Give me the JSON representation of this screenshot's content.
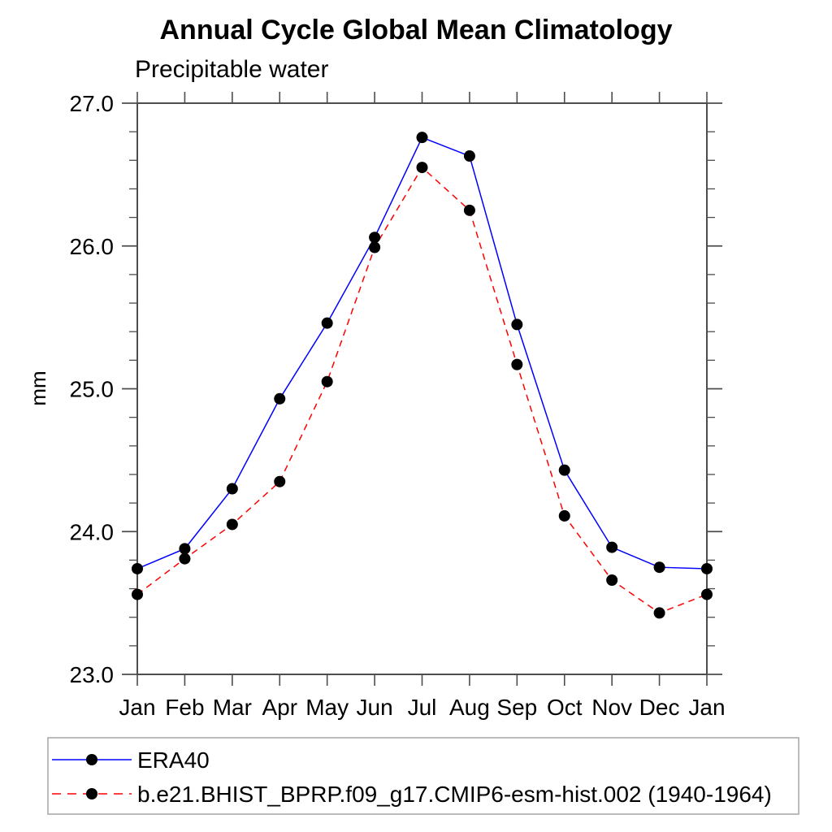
{
  "page": {
    "background": "#ffffff"
  },
  "colors": {
    "axis": "#4d4d4d",
    "text": "#000000",
    "legend_border": "#a6a6a6",
    "background": "#ffffff"
  },
  "chart_data": {
    "type": "line",
    "title": "Annual Cycle Global Mean Climatology",
    "subtitle": "Precipitable water",
    "ylabel": "mm",
    "xlabel": "",
    "categories": [
      "Jan",
      "Feb",
      "Mar",
      "Apr",
      "May",
      "Jun",
      "Jul",
      "Aug",
      "Sep",
      "Oct",
      "Nov",
      "Dec",
      "Jan"
    ],
    "y_axis": {
      "min": 23.0,
      "max": 27.0,
      "major_step": 1.0,
      "minor_step": 0.2,
      "tick_labels": [
        "23.0",
        "24.0",
        "25.0",
        "26.0",
        "27.0"
      ]
    },
    "grid": false,
    "legend_position": "bottom-left",
    "series": [
      {
        "name": "ERA40",
        "color": "#0000ff",
        "line_style": "solid",
        "marker": "filled-circle",
        "marker_color": "#000000",
        "values": [
          23.74,
          23.88,
          24.3,
          24.93,
          25.46,
          26.06,
          26.76,
          26.63,
          25.45,
          24.43,
          23.89,
          23.75,
          23.74
        ]
      },
      {
        "name": "b.e21.BHIST_BPRP.f09_g17.CMIP6-esm-hist.002 (1940-1964)",
        "color": "#ff0000",
        "line_style": "dashed",
        "marker": "filled-circle",
        "marker_color": "#000000",
        "values": [
          23.56,
          23.81,
          24.05,
          24.35,
          25.05,
          25.99,
          26.55,
          26.25,
          25.17,
          24.11,
          23.66,
          23.43,
          23.56
        ]
      }
    ]
  }
}
